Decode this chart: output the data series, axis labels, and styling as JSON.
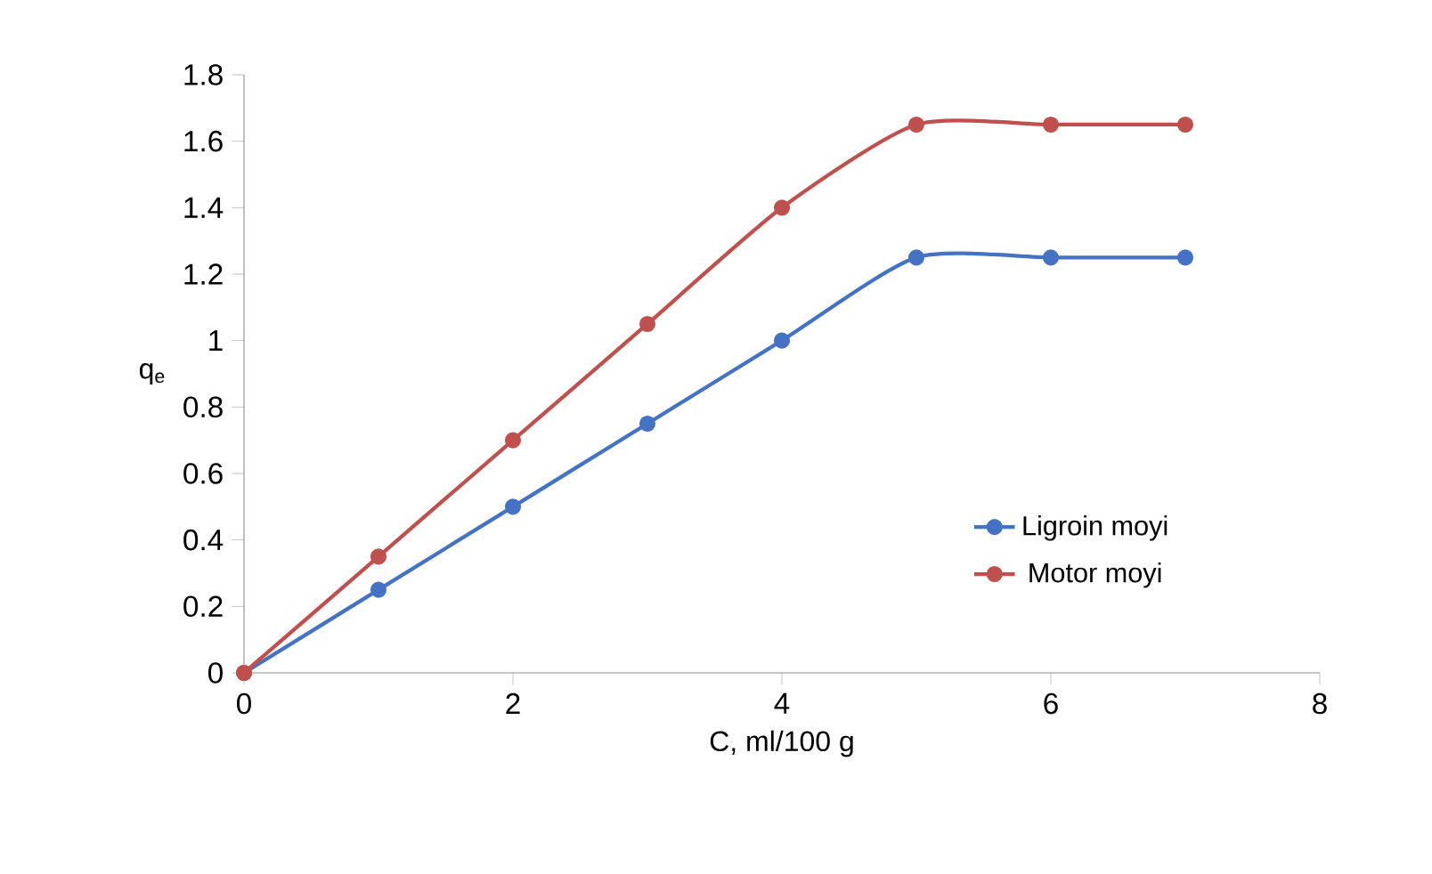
{
  "chart_data": {
    "type": "line",
    "xlabel": "C, ml/100 g",
    "ylabel": "q$_{e}$",
    "x": [
      0,
      1,
      2,
      3,
      4,
      5,
      6,
      7
    ],
    "series": [
      {
        "name": "Ligroin moyi",
        "color": "#4472c4",
        "values": [
          0,
          0.25,
          0.5,
          0.75,
          1.0,
          1.25,
          1.25,
          1.25
        ]
      },
      {
        "name": "Motor moyi",
        "color": "#c0504d",
        "values": [
          0,
          0.35,
          0.7,
          1.05,
          1.4,
          1.65,
          1.65,
          1.65
        ]
      }
    ],
    "xlim": [
      0,
      8
    ],
    "xticks": [
      0,
      2,
      4,
      6,
      8
    ],
    "ylim": [
      0,
      1.8
    ],
    "yticks": [
      0,
      0.2,
      0.4,
      0.6,
      0.8,
      1,
      1.2,
      1.4,
      1.6,
      1.8
    ],
    "grid": false,
    "legend": "right",
    "marker": "circle",
    "line_style": "solid"
  }
}
